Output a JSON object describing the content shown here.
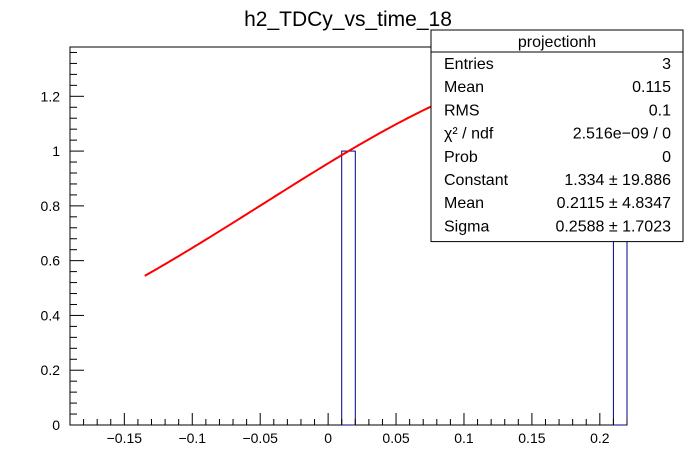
{
  "chart_data": {
    "type": "bar",
    "title": "h2_TDCy_vs_time_18",
    "xlabel": "",
    "ylabel": "",
    "xlim": [
      -0.19,
      0.22
    ],
    "ylim": [
      0,
      1.38
    ],
    "x_ticks": [
      -0.15,
      -0.1,
      -0.05,
      0,
      0.05,
      0.1,
      0.15,
      0.2
    ],
    "x_tick_labels": [
      "−0.15",
      "−0.1",
      "−0.05",
      "0",
      "0.05",
      "0.1",
      "0.15",
      "0.2"
    ],
    "y_ticks": [
      0,
      0.2,
      0.4,
      0.6,
      0.8,
      1,
      1.2
    ],
    "y_tick_labels": [
      "0",
      "0.2",
      "0.4",
      "0.6",
      "0.8",
      "1",
      "1.2"
    ],
    "grid": false,
    "histogram": {
      "bins": [
        {
          "x_low": 0.01,
          "x_high": 0.02,
          "value": 1,
          "edge_color": "#000088"
        },
        {
          "x_low": 0.21,
          "x_high": 0.22,
          "value": 1,
          "edge_color": "#000088"
        }
      ]
    },
    "fit_curve": {
      "color": "#ff0000",
      "x_range": [
        -0.135,
        0.22
      ],
      "constant": 1.334,
      "mean": 0.2115,
      "sigma": 0.2588
    },
    "stats_box": {
      "title": "projectionh",
      "position": "top-right",
      "rows": [
        {
          "label": "Entries",
          "value": "3"
        },
        {
          "label": "Mean",
          "value": "0.115"
        },
        {
          "label": "RMS",
          "value": "0.1"
        },
        {
          "label": "χ² / ndf",
          "value": "2.516e−09 / 0"
        },
        {
          "label": "Prob",
          "value": "0"
        },
        {
          "label": "Constant",
          "value": "1.334 ± 19.886"
        },
        {
          "label": "Mean",
          "value": "0.2115 ± 4.8347"
        },
        {
          "label": "Sigma",
          "value": "0.2588 ± 1.7023"
        }
      ]
    }
  }
}
